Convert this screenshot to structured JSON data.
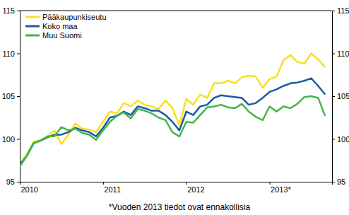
{
  "chart_data": {
    "type": "line",
    "x": [
      2010.0,
      2010.0833,
      2010.1667,
      2010.25,
      2010.3333,
      2010.4167,
      2010.5,
      2010.5833,
      2010.6667,
      2010.75,
      2010.8333,
      2010.9167,
      2011.0,
      2011.0833,
      2011.1667,
      2011.25,
      2011.3333,
      2011.4167,
      2011.5,
      2011.5833,
      2011.6667,
      2011.75,
      2011.8333,
      2011.9167,
      2012.0,
      2012.0833,
      2012.1667,
      2012.25,
      2012.3333,
      2012.4167,
      2012.5,
      2012.5833,
      2012.6667,
      2012.75,
      2012.8333,
      2012.9167,
      2013.0,
      2013.0833,
      2013.1667,
      2013.25,
      2013.3333,
      2013.4167,
      2013.5,
      2013.5833,
      2013.6667
    ],
    "series": [
      {
        "name": "Pääkaupunkiseutu",
        "color": "#f7e21b",
        "values": [
          97.0,
          98.2,
          99.7,
          99.9,
          100.3,
          101.0,
          99.4,
          100.5,
          101.8,
          101.2,
          101.1,
          100.8,
          102.0,
          103.2,
          103.0,
          104.2,
          103.8,
          104.5,
          104.0,
          103.8,
          103.5,
          104.5,
          103.6,
          101.6,
          104.7,
          104.0,
          105.2,
          104.8,
          106.5,
          106.5,
          106.8,
          106.5,
          107.2,
          107.4,
          107.3,
          106.0,
          107.0,
          107.3,
          109.2,
          109.8,
          109.0,
          108.8,
          110.0,
          109.3,
          108.4
        ]
      },
      {
        "name": "Koko maa",
        "color": "#1a5aa6",
        "values": [
          97.0,
          98.0,
          99.5,
          99.8,
          100.2,
          100.5,
          100.5,
          100.8,
          101.3,
          101.0,
          100.8,
          100.3,
          101.3,
          102.5,
          102.7,
          103.2,
          102.8,
          103.8,
          103.6,
          103.3,
          103.3,
          102.8,
          102.0,
          101.0,
          103.2,
          102.8,
          103.8,
          104.0,
          104.8,
          105.1,
          105.0,
          104.9,
          104.8,
          104.0,
          104.2,
          104.8,
          105.5,
          105.8,
          106.2,
          106.5,
          106.6,
          106.8,
          107.1,
          106.2,
          105.2
        ]
      },
      {
        "name": "Muu Suomi",
        "color": "#42b649",
        "values": [
          96.8,
          98.0,
          99.5,
          99.8,
          100.3,
          100.3,
          101.4,
          101.0,
          101.2,
          100.7,
          100.5,
          99.9,
          101.0,
          102.0,
          102.7,
          103.1,
          102.4,
          103.5,
          103.3,
          103.0,
          102.5,
          102.2,
          100.8,
          100.3,
          102.0,
          101.9,
          102.8,
          103.7,
          103.8,
          104.0,
          103.7,
          103.6,
          104.1,
          103.2,
          102.6,
          102.2,
          103.8,
          103.2,
          103.8,
          103.6,
          104.1,
          104.9,
          105.0,
          104.8,
          102.7
        ]
      }
    ],
    "xlim": [
      2010,
      2013.75
    ],
    "xticks": [
      {
        "value": 2010,
        "label": "2010"
      },
      {
        "value": 2011,
        "label": "2011"
      },
      {
        "value": 2012,
        "label": "2012"
      },
      {
        "value": 2013,
        "label": "2013*"
      }
    ],
    "ylim": [
      95,
      115
    ],
    "yticks": [
      95,
      100,
      105,
      110,
      115
    ],
    "grid": false,
    "legend": "upper left",
    "annotations": [
      "*Vuoden 2013 tiedot ovat ennakollisia"
    ]
  }
}
